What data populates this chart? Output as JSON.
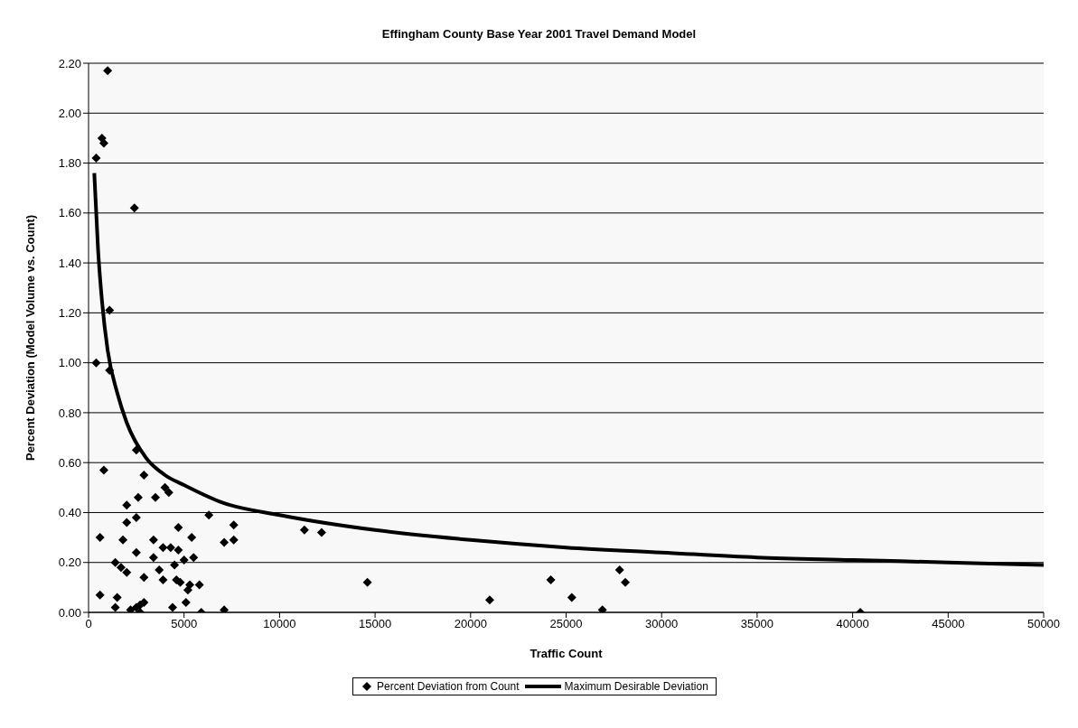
{
  "chart_data": {
    "type": "scatter",
    "title": "Effingham County Base Year 2001 Travel Demand Model",
    "xlabel": "Traffic Count",
    "ylabel": "Percent Deviation (Model Volume vs. Count)",
    "xlim": [
      0,
      50000
    ],
    "xticks": [
      0,
      5000,
      10000,
      15000,
      20000,
      25000,
      30000,
      35000,
      40000,
      45000,
      50000
    ],
    "ylim": [
      0,
      2.2
    ],
    "yticks": [
      {
        "value": 0,
        "label": "0.00"
      },
      {
        "value": 0.2,
        "label": "0.20"
      },
      {
        "value": 0.4,
        "label": "0.40"
      },
      {
        "value": 0.6,
        "label": "0.60"
      },
      {
        "value": 0.8,
        "label": "0.80"
      },
      {
        "value": 1,
        "label": "1.00"
      },
      {
        "value": 1.2,
        "label": "1.20"
      },
      {
        "value": 1.4,
        "label": "1.40"
      },
      {
        "value": 1.6,
        "label": "1.60"
      },
      {
        "value": 1.8,
        "label": "1.80"
      },
      {
        "value": 2,
        "label": "2.00"
      },
      {
        "value": 2.2,
        "label": "2.20"
      }
    ],
    "grid": "y",
    "legend": "bottom",
    "series": [
      {
        "name": "Percent Deviation from Count",
        "color": "#000000",
        "marker": "diamond",
        "x": [
          1000,
          700,
          800,
          400,
          2400,
          1100,
          400,
          1100,
          2500,
          800,
          2900,
          4000,
          4200,
          3500,
          2600,
          2000,
          6300,
          2500,
          2000,
          7600,
          4700,
          11300,
          12200,
          5400,
          600,
          1800,
          3400,
          7600,
          7100,
          3900,
          4300,
          4700,
          2500,
          3400,
          5500,
          5000,
          1400,
          4500,
          1700,
          3700,
          27800,
          2000,
          2900,
          3900,
          4600,
          4800,
          14600,
          24200,
          28100,
          5300,
          5800,
          5200,
          600,
          1500,
          25300,
          21000,
          2900,
          5100,
          1400,
          4400,
          2500,
          2700,
          2200,
          7100,
          26900,
          5900,
          2700,
          40400
        ],
        "values": [
          2.17,
          1.9,
          1.88,
          1.82,
          1.62,
          1.21,
          1.0,
          0.97,
          0.65,
          0.57,
          0.55,
          0.5,
          0.48,
          0.46,
          0.46,
          0.43,
          0.39,
          0.38,
          0.36,
          0.35,
          0.34,
          0.33,
          0.32,
          0.3,
          0.3,
          0.29,
          0.29,
          0.29,
          0.28,
          0.26,
          0.26,
          0.25,
          0.24,
          0.22,
          0.22,
          0.21,
          0.2,
          0.19,
          0.18,
          0.17,
          0.17,
          0.16,
          0.14,
          0.13,
          0.13,
          0.12,
          0.12,
          0.13,
          0.12,
          0.11,
          0.11,
          0.09,
          0.07,
          0.06,
          0.06,
          0.05,
          0.04,
          0.04,
          0.02,
          0.02,
          0.02,
          0.03,
          0.01,
          0.01,
          0.01,
          0.0,
          0.0,
          0.0
        ]
      },
      {
        "name": "Maximum Desirable Deviation",
        "type": "line",
        "color": "#000000",
        "marker": "none",
        "x": [
          300,
          500,
          700,
          1000,
          1500,
          2000,
          3000,
          4000,
          5000,
          7000,
          10000,
          15000,
          20000,
          25000,
          30000,
          35000,
          40000,
          45000,
          50000
        ],
        "values": [
          1.76,
          1.45,
          1.25,
          1.05,
          0.88,
          0.76,
          0.62,
          0.55,
          0.51,
          0.44,
          0.39,
          0.33,
          0.29,
          0.26,
          0.24,
          0.22,
          0.21,
          0.2,
          0.19
        ]
      }
    ]
  }
}
